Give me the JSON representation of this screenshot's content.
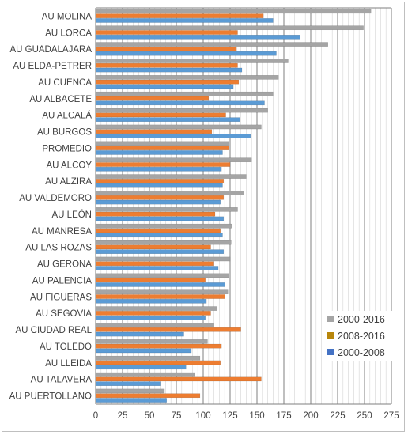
{
  "chart_data": {
    "type": "bar",
    "orientation": "horizontal",
    "categories": [
      "AU MOLINA",
      "AU LORCA",
      "AU GUADALAJARA",
      "AU ELDA-PETRER",
      "AU CUENCA",
      "AU ALBACETE",
      "AU ALCALÁ",
      "AU BURGOS",
      "PROMEDIO",
      "AU ALCOY",
      "AU ALZIRA",
      "AU VALDEMORO",
      "AU LEÓN",
      "AU MANRESA",
      "AU LAS ROZAS",
      "AU GERONA",
      "AU PALENCIA",
      "AU FIGUERAS",
      "AU SEGOVIA",
      "AU CIUDAD REAL",
      "AU TOLEDO",
      "AU LLEIDA",
      "AU TALAVERA",
      "AU PUERTOLLANO"
    ],
    "series": [
      {
        "name": "2000-2016",
        "values": [
          256,
          249,
          216,
          179,
          170,
          165,
          160,
          154,
          124,
          145,
          140,
          138,
          132,
          127,
          126,
          125,
          124,
          123,
          113,
          110,
          104,
          97,
          92,
          64
        ]
      },
      {
        "name": "2008-2016",
        "values": [
          156,
          132,
          131,
          132,
          133,
          105,
          121,
          108,
          124,
          125,
          119,
          119,
          111,
          116,
          107,
          110,
          102,
          120,
          107,
          135,
          117,
          116,
          154,
          97
        ]
      },
      {
        "name": "2000-2008",
        "values": [
          165,
          190,
          168,
          136,
          128,
          157,
          134,
          144,
          118,
          117,
          118,
          116,
          119,
          118,
          119,
          114,
          120,
          103,
          102,
          82,
          89,
          84,
          60,
          66
        ]
      }
    ],
    "colors": {
      "2000-2016": "#a5a5a5",
      "2008-2016": "#ed7d31",
      "2000-2008": "#5b9bd5",
      "legend-2008-2016": "#b8860b",
      "legend-2000-2008": "#4472c4",
      "alt-purple": "#7b68c8",
      "alt-olive": "#8b9a3a"
    },
    "xlim": [
      0,
      275
    ],
    "xticks": [
      "0",
      "25",
      "50",
      "75",
      "100",
      "125",
      "150",
      "175",
      "200",
      "225",
      "250",
      "275"
    ],
    "grid": true,
    "legend_position": "bottom-right",
    "title": "",
    "xlabel": "",
    "ylabel": ""
  }
}
